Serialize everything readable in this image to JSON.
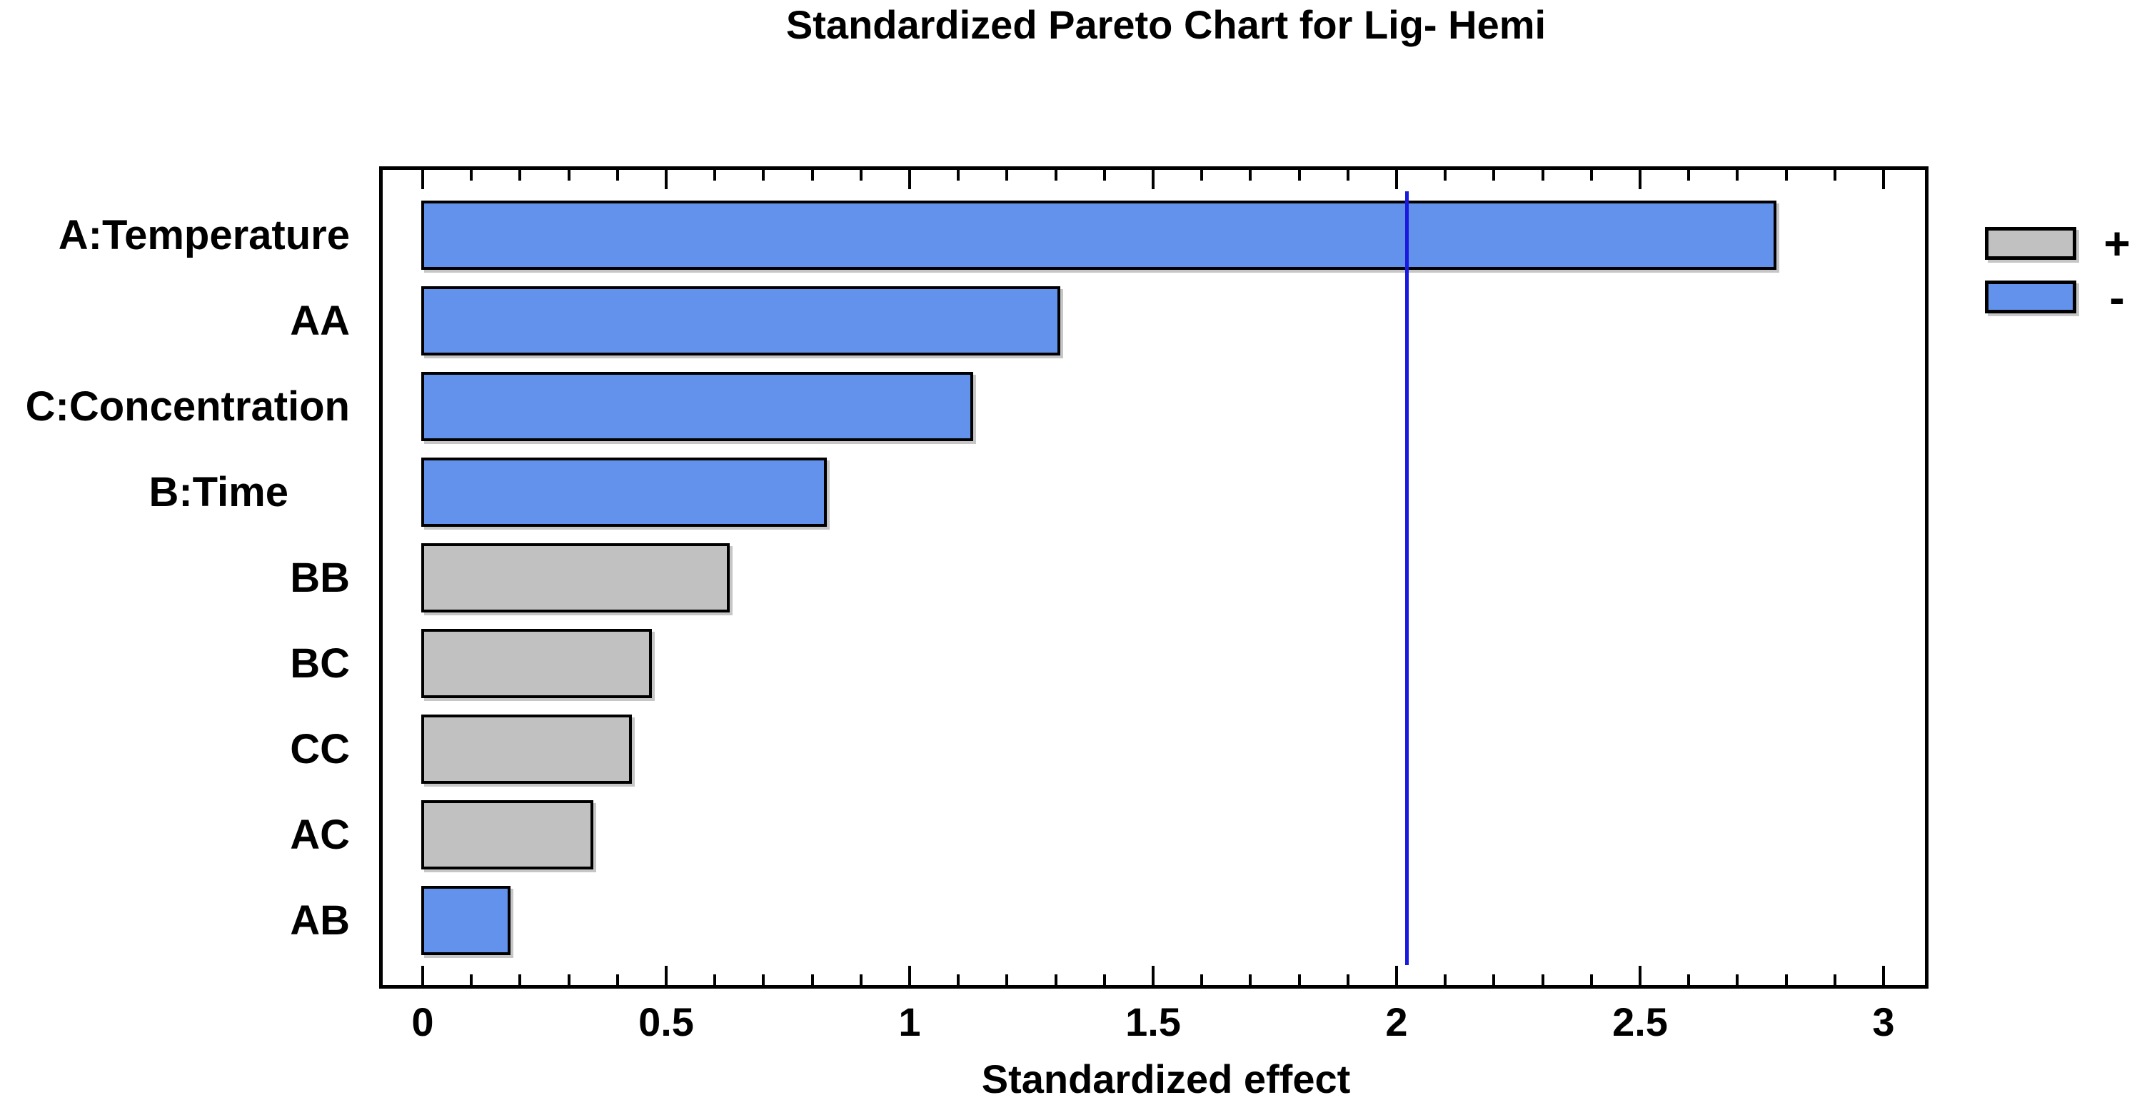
{
  "title": "Standardized Pareto Chart for Lig- Hemi",
  "x_axis": {
    "label": "Standardized effect",
    "tick_labels": [
      "0",
      "0.5",
      "1",
      "1.5",
      "2",
      "2.5",
      "3"
    ],
    "min": 0,
    "max": 3,
    "major_step": 0.5,
    "minor_step": 0.1
  },
  "legend": {
    "items": [
      {
        "label": "+",
        "color": "#C1C1C1"
      },
      {
        "label": "-",
        "color": "#6292EB"
      }
    ]
  },
  "chart_data": {
    "type": "bar",
    "orientation": "horizontal",
    "title": "Standardized Pareto Chart for Lig- Hemi",
    "xlabel": "Standardized effect",
    "xlim": [
      0,
      3
    ],
    "grid": false,
    "legend_position": "right",
    "categories": [
      "A:Temperature",
      "AA",
      "C:Concentration",
      "B:Time",
      "BB",
      "BC",
      "CC",
      "AC",
      "AB"
    ],
    "values": [
      2.78,
      1.31,
      1.13,
      0.83,
      0.63,
      0.47,
      0.43,
      0.35,
      0.18
    ],
    "effect_signs": [
      "-",
      "-",
      "-",
      "-",
      "+",
      "+",
      "+",
      "+",
      "-"
    ],
    "bar_colors": {
      "+": "#C1C1C1",
      "-": "#6292EB"
    },
    "reference_line": {
      "value": 2.02,
      "color": "#1A1ADF"
    }
  }
}
